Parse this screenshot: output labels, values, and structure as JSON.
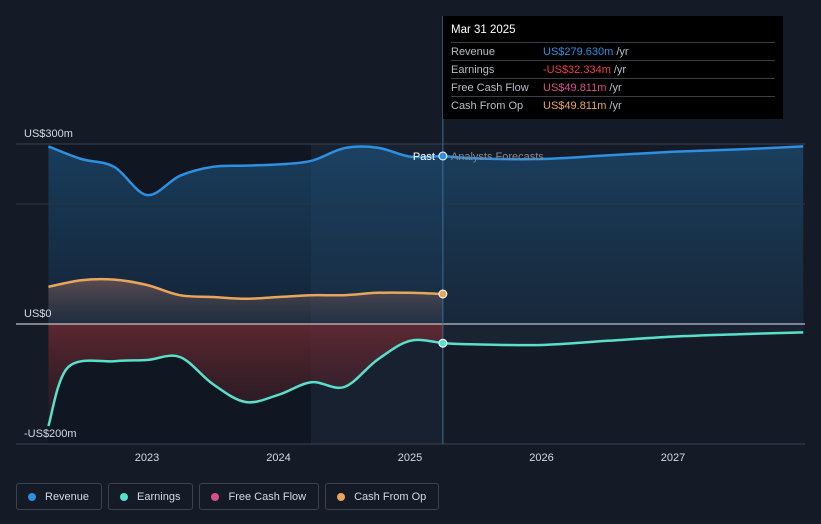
{
  "chart_data": {
    "type": "line",
    "y_unit": "US$m",
    "ylim": [
      -200,
      300
    ],
    "y_ticks": [
      {
        "value": 300,
        "label": "US$300m"
      },
      {
        "value": 0,
        "label": "US$0"
      },
      {
        "value": -200,
        "label": "-US$200m"
      }
    ],
    "x_ticks": [
      "2023",
      "2024",
      "2025",
      "2026",
      "2027"
    ],
    "divider_label_past": "Past",
    "divider_label_forecast": "Analysts Forecasts",
    "series": [
      {
        "name": "Revenue",
        "color": "#2f8fe0",
        "past": [
          [
            2022.25,
            296
          ],
          [
            2022.5,
            275
          ],
          [
            2022.75,
            262
          ],
          [
            2023.0,
            215
          ],
          [
            2023.25,
            247
          ],
          [
            2023.5,
            262
          ],
          [
            2023.75,
            264
          ],
          [
            2024.0,
            266
          ],
          [
            2024.25,
            272
          ],
          [
            2024.5,
            293
          ],
          [
            2024.75,
            294
          ],
          [
            2025.0,
            279
          ],
          [
            2025.25,
            280
          ]
        ],
        "forecast": [
          [
            2025.25,
            280
          ],
          [
            2025.5,
            276
          ],
          [
            2026.0,
            275
          ],
          [
            2026.5,
            281
          ],
          [
            2027.0,
            287
          ],
          [
            2027.5,
            291
          ],
          [
            2027.99,
            296
          ]
        ]
      },
      {
        "name": "Earnings",
        "color": "#58e0cb",
        "past": [
          [
            2022.25,
            -170
          ],
          [
            2022.4,
            -72
          ],
          [
            2022.75,
            -62
          ],
          [
            2023.0,
            -60
          ],
          [
            2023.25,
            -55
          ],
          [
            2023.5,
            -100
          ],
          [
            2023.75,
            -130
          ],
          [
            2024.0,
            -118
          ],
          [
            2024.25,
            -97
          ],
          [
            2024.5,
            -105
          ],
          [
            2024.75,
            -60
          ],
          [
            2025.0,
            -28
          ],
          [
            2025.25,
            -32
          ]
        ],
        "forecast": [
          [
            2025.25,
            -32
          ],
          [
            2025.5,
            -34
          ],
          [
            2026.0,
            -35
          ],
          [
            2026.5,
            -28
          ],
          [
            2027.0,
            -21
          ],
          [
            2027.5,
            -17
          ],
          [
            2027.99,
            -14
          ]
        ]
      },
      {
        "name": "Free Cash Flow",
        "color": "#d94f8a",
        "past": [
          [
            2022.25,
            62
          ],
          [
            2022.5,
            73
          ],
          [
            2022.75,
            74
          ],
          [
            2023.0,
            65
          ],
          [
            2023.25,
            48
          ],
          [
            2023.5,
            45
          ],
          [
            2023.75,
            42
          ],
          [
            2024.0,
            45
          ],
          [
            2024.25,
            48
          ],
          [
            2024.5,
            48
          ],
          [
            2024.75,
            52
          ],
          [
            2025.0,
            52
          ],
          [
            2025.25,
            50
          ]
        ],
        "forecast": []
      },
      {
        "name": "Cash From Op",
        "color": "#e8a65c",
        "past": [
          [
            2022.25,
            62
          ],
          [
            2022.5,
            73
          ],
          [
            2022.75,
            74
          ],
          [
            2023.0,
            65
          ],
          [
            2023.25,
            48
          ],
          [
            2023.5,
            45
          ],
          [
            2023.75,
            42
          ],
          [
            2024.0,
            45
          ],
          [
            2024.25,
            48
          ],
          [
            2024.5,
            48
          ],
          [
            2024.75,
            52
          ],
          [
            2025.0,
            52
          ],
          [
            2025.25,
            50
          ]
        ],
        "forecast": []
      }
    ]
  },
  "tooltip": {
    "date": "Mar 31 2025",
    "unit": "/yr",
    "rows": [
      {
        "label": "Revenue",
        "value": "US$279.630m",
        "color": "#2f8fe0"
      },
      {
        "label": "Earnings",
        "value": "-US$32.334m",
        "color": "#ee3f4f"
      },
      {
        "label": "Free Cash Flow",
        "value": "US$49.811m",
        "color": "#d94f8a"
      },
      {
        "label": "Cash From Op",
        "value": "US$49.811m",
        "color": "#e8a65c"
      }
    ]
  },
  "legend": [
    {
      "label": "Revenue",
      "color": "#2f8fe0"
    },
    {
      "label": "Earnings",
      "color": "#58e0cb"
    },
    {
      "label": "Free Cash Flow",
      "color": "#d94f8a"
    },
    {
      "label": "Cash From Op",
      "color": "#e8a65c"
    }
  ]
}
